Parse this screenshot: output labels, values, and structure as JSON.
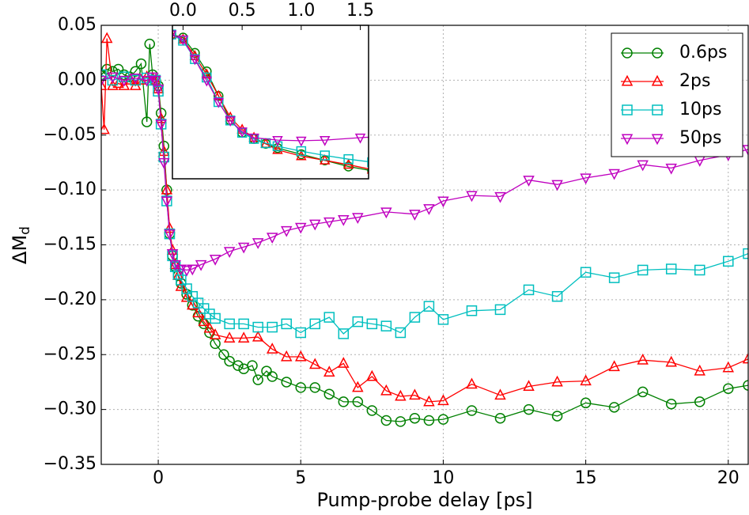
{
  "chart_data": {
    "type": "line",
    "x_label": "Pump-probe delay [ps]",
    "y_label": "ΔM",
    "y_label_subscript": "d",
    "xlim": [
      -2,
      20.7
    ],
    "ylim": [
      -0.35,
      0.05
    ],
    "xticks": [
      0,
      5,
      10,
      15,
      20
    ],
    "yticks": [
      {
        "value": 0.05,
        "label": "0.05"
      },
      {
        "value": 0,
        "label": "0.00"
      },
      {
        "value": -0.05,
        "label": "−0.05"
      },
      {
        "value": -0.1,
        "label": "−0.10"
      },
      {
        "value": -0.15,
        "label": "−0.15"
      },
      {
        "value": -0.2,
        "label": "−0.20"
      },
      {
        "value": -0.25,
        "label": "−0.25"
      },
      {
        "value": -0.3,
        "label": "−0.30"
      },
      {
        "value": -0.35,
        "label": "−0.35"
      }
    ],
    "grid": true,
    "legend": "upper right",
    "inset": {
      "xlim": [
        -0.09,
        1.57
      ],
      "ylim": [
        -0.235,
        0.015
      ],
      "xticks": [
        {
          "value": 0,
          "label": "0.0"
        },
        {
          "value": 0.5,
          "label": "0.5"
        },
        {
          "value": 1,
          "label": "1.0"
        },
        {
          "value": 1.5,
          "label": "1.5"
        }
      ]
    },
    "series": [
      {
        "name": "0.6ps",
        "color": "#008000",
        "marker": "circle",
        "x": [
          -2,
          -1.8,
          -1.6,
          -1.4,
          -1.2,
          -1,
          -0.8,
          -0.6,
          -0.4,
          -0.3,
          -0.2,
          -0.1,
          0,
          0.1,
          0.2,
          0.3,
          0.4,
          0.5,
          0.6,
          0.7,
          0.8,
          1,
          1.2,
          1.4,
          1.6,
          1.8,
          2,
          2.3,
          2.5,
          2.8,
          3,
          3.3,
          3.5,
          3.8,
          4,
          4.5,
          5,
          5.5,
          6,
          6.5,
          7,
          7.5,
          8,
          8.5,
          9,
          9.5,
          10,
          11,
          12,
          13,
          14,
          15,
          16,
          17,
          18,
          19,
          20,
          20.7
        ],
        "values": [
          0.005,
          0.01,
          0.008,
          0.01,
          0.005,
          0.003,
          0.008,
          0.015,
          -0.038,
          0.033,
          0.005,
          0,
          -0.005,
          -0.03,
          -0.06,
          -0.1,
          -0.14,
          -0.16,
          -0.17,
          -0.178,
          -0.185,
          -0.195,
          -0.205,
          -0.215,
          -0.222,
          -0.23,
          -0.24,
          -0.25,
          -0.256,
          -0.26,
          -0.263,
          -0.26,
          -0.273,
          -0.265,
          -0.27,
          -0.275,
          -0.28,
          -0.28,
          -0.286,
          -0.293,
          -0.293,
          -0.301,
          -0.31,
          -0.311,
          -0.308,
          -0.31,
          -0.309,
          -0.301,
          -0.308,
          -0.3,
          -0.306,
          -0.294,
          -0.298,
          -0.284,
          -0.295,
          -0.293,
          -0.281,
          -0.278
        ]
      },
      {
        "name": "2ps",
        "color": "#ff0000",
        "marker": "triangle-up",
        "x": [
          -2,
          -1.9,
          -1.8,
          -1.6,
          -1.4,
          -1.2,
          -1,
          -0.8,
          -0.6,
          -0.4,
          -0.2,
          -0.1,
          0,
          0.1,
          0.2,
          0.3,
          0.4,
          0.5,
          0.6,
          0.7,
          0.8,
          1,
          1.2,
          1.4,
          1.6,
          1.8,
          2,
          2.5,
          3,
          3.5,
          4,
          4.5,
          5,
          5.5,
          6,
          6.5,
          7,
          7.5,
          8,
          8.5,
          9,
          9.5,
          10,
          11,
          12,
          13,
          14,
          15,
          16,
          17,
          18,
          19,
          20,
          20.7
        ],
        "values": [
          -0.005,
          -0.045,
          0.038,
          -0.005,
          -0.003,
          -0.005,
          0,
          -0.005,
          0,
          0.003,
          0.002,
          0,
          -0.008,
          -0.035,
          -0.065,
          -0.1,
          -0.135,
          -0.155,
          -0.168,
          -0.178,
          -0.188,
          -0.198,
          -0.205,
          -0.212,
          -0.22,
          -0.226,
          -0.232,
          -0.235,
          -0.235,
          -0.234,
          -0.245,
          -0.252,
          -0.252,
          -0.259,
          -0.266,
          -0.258,
          -0.28,
          -0.27,
          -0.283,
          -0.288,
          -0.287,
          -0.293,
          -0.292,
          -0.277,
          -0.287,
          -0.279,
          -0.275,
          -0.274,
          -0.261,
          -0.255,
          -0.257,
          -0.265,
          -0.262,
          -0.254
        ]
      },
      {
        "name": "10ps",
        "color": "#00bfbf",
        "marker": "square",
        "x": [
          -2,
          -1.6,
          -1.2,
          -0.8,
          -0.4,
          -0.2,
          -0.1,
          0,
          0.1,
          0.2,
          0.3,
          0.4,
          0.5,
          0.6,
          0.7,
          0.8,
          1,
          1.2,
          1.4,
          1.6,
          1.8,
          2,
          2.5,
          3,
          3.5,
          4,
          4.5,
          5,
          5.5,
          6,
          6.5,
          7,
          7.5,
          8,
          8.5,
          9,
          9.5,
          10,
          11,
          12,
          13,
          14,
          15,
          16,
          17,
          18,
          19,
          20,
          20.7
        ],
        "values": [
          0.005,
          0,
          0.003,
          0,
          0.002,
          0,
          0,
          -0.01,
          -0.04,
          -0.07,
          -0.11,
          -0.14,
          -0.16,
          -0.17,
          -0.177,
          -0.182,
          -0.19,
          -0.197,
          -0.203,
          -0.208,
          -0.213,
          -0.217,
          -0.222,
          -0.222,
          -0.225,
          -0.225,
          -0.222,
          -0.23,
          -0.222,
          -0.216,
          -0.231,
          -0.22,
          -0.222,
          -0.224,
          -0.23,
          -0.216,
          -0.206,
          -0.218,
          -0.21,
          -0.209,
          -0.191,
          -0.197,
          -0.175,
          -0.18,
          -0.173,
          -0.172,
          -0.173,
          -0.165,
          -0.158
        ]
      },
      {
        "name": "50ps",
        "color": "#bf00bf",
        "marker": "triangle-down",
        "x": [
          -2,
          -1.6,
          -1.2,
          -0.8,
          -0.4,
          -0.2,
          -0.1,
          0,
          0.1,
          0.2,
          0.3,
          0.4,
          0.5,
          0.6,
          0.8,
          1,
          1.2,
          1.5,
          2,
          2.5,
          3,
          3.5,
          4,
          4.5,
          5,
          5.5,
          6,
          6.5,
          7,
          8,
          9,
          9.5,
          10,
          11,
          12,
          13,
          14,
          15,
          16,
          17,
          18,
          19,
          20,
          20.7
        ],
        "values": [
          0,
          0.003,
          0,
          0.002,
          0,
          0.003,
          0,
          -0.008,
          -0.04,
          -0.075,
          -0.11,
          -0.14,
          -0.158,
          -0.168,
          -0.172,
          -0.173,
          -0.172,
          -0.168,
          -0.163,
          -0.156,
          -0.152,
          -0.148,
          -0.143,
          -0.137,
          -0.134,
          -0.131,
          -0.129,
          -0.127,
          -0.125,
          -0.12,
          -0.122,
          -0.117,
          -0.11,
          -0.105,
          -0.106,
          -0.091,
          -0.095,
          -0.089,
          -0.085,
          -0.077,
          -0.08,
          -0.073,
          -0.068,
          -0.063
        ]
      }
    ]
  }
}
